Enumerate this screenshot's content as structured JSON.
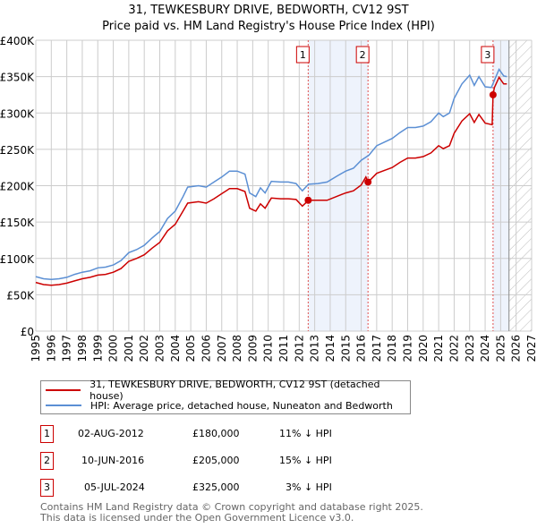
{
  "title": "31, TEWKESBURY DRIVE, BEDWORTH, CV12 9ST",
  "subtitle": "Price paid vs. HM Land Registry's House Price Index (HPI)",
  "legend": {
    "property": "31, TEWKESBURY DRIVE, BEDWORTH, CV12 9ST (detached house)",
    "hpi": "HPI: Average price, detached house, Nuneaton and Bedworth"
  },
  "sales": [
    {
      "num": "1",
      "date": "02-AUG-2012",
      "price": "£180,000",
      "delta": "11% ↓ HPI"
    },
    {
      "num": "2",
      "date": "10-JUN-2016",
      "price": "£205,000",
      "delta": "15% ↓ HPI"
    },
    {
      "num": "3",
      "date": "05-JUL-2024",
      "price": "£325,000",
      "delta": "3% ↓ HPI"
    }
  ],
  "footer": {
    "line1": "Contains HM Land Registry data © Crown copyright and database right 2025.",
    "line2": "This data is licensed under the Open Government Licence v3.0."
  },
  "colors": {
    "property": "#cc0000",
    "hpi": "#5b8fd4",
    "shade": "#eef3fc"
  },
  "chart_data": {
    "type": "line",
    "xlim": [
      1995,
      2027
    ],
    "ylim": [
      0,
      400000
    ],
    "x_ticks": [
      "1995",
      "1996",
      "1997",
      "1998",
      "1999",
      "2000",
      "2001",
      "2002",
      "2003",
      "2004",
      "2005",
      "2006",
      "2007",
      "2008",
      "2009",
      "2010",
      "2011",
      "2012",
      "2013",
      "2014",
      "2015",
      "2016",
      "2017",
      "2018",
      "2019",
      "2020",
      "2021",
      "2022",
      "2023",
      "2024",
      "2025",
      "2026",
      "2027"
    ],
    "y_ticks": [
      {
        "v": 0,
        "label": "£0"
      },
      {
        "v": 50000,
        "label": "£50K"
      },
      {
        "v": 100000,
        "label": "£100K"
      },
      {
        "v": 150000,
        "label": "£150K"
      },
      {
        "v": 200000,
        "label": "£200K"
      },
      {
        "v": 250000,
        "label": "£250K"
      },
      {
        "v": 300000,
        "label": "£300K"
      },
      {
        "v": 350000,
        "label": "£350K"
      },
      {
        "v": 400000,
        "label": "£400K"
      }
    ],
    "grid": true,
    "shaded_ranges": [
      [
        2012.58,
        2016.44
      ],
      [
        2024.51,
        2025.54
      ]
    ],
    "forecast_hatch_from": 2025.54,
    "sale_points": [
      {
        "label": "1",
        "x": 2012.58,
        "y": 180000
      },
      {
        "label": "2",
        "x": 2016.44,
        "y": 205000
      },
      {
        "label": "3",
        "x": 2024.51,
        "y": 325000
      }
    ],
    "series": [
      {
        "name": "HPI: Average price, detached house, Nuneaton and Bedworth",
        "color": "#5b8fd4",
        "x": [
          1995.0,
          1995.5,
          1996.0,
          1996.5,
          1997.0,
          1997.5,
          1998.0,
          1998.5,
          1999.0,
          1999.5,
          2000.0,
          2000.5,
          2001.0,
          2001.5,
          2002.0,
          2002.5,
          2003.0,
          2003.5,
          2004.0,
          2004.5,
          2004.8,
          2005.5,
          2006.0,
          2006.5,
          2007.0,
          2007.5,
          2008.0,
          2008.5,
          2008.8,
          2009.2,
          2009.5,
          2009.8,
          2010.2,
          2010.8,
          2011.3,
          2011.8,
          2012.2,
          2012.6,
          2013.2,
          2013.8,
          2014.5,
          2015.0,
          2015.5,
          2016.0,
          2016.5,
          2017.0,
          2017.5,
          2018.0,
          2018.5,
          2019.0,
          2019.5,
          2020.0,
          2020.5,
          2021.0,
          2021.3,
          2021.7,
          2022.0,
          2022.5,
          2023.0,
          2023.3,
          2023.6,
          2024.0,
          2024.4,
          2024.6,
          2024.9,
          2025.2,
          2025.4
        ],
        "y": [
          75000,
          72000,
          71000,
          72000,
          74000,
          78000,
          81000,
          83000,
          87000,
          88000,
          91000,
          97000,
          108000,
          112000,
          118000,
          128000,
          137000,
          155000,
          165000,
          185000,
          198000,
          200000,
          198000,
          205000,
          212000,
          220000,
          220000,
          216000,
          190000,
          185000,
          197000,
          190000,
          206000,
          205000,
          205000,
          203000,
          193000,
          202000,
          203000,
          205000,
          214000,
          220000,
          224000,
          235000,
          242000,
          255000,
          260000,
          265000,
          273000,
          280000,
          280000,
          282000,
          288000,
          300000,
          295000,
          300000,
          320000,
          340000,
          352000,
          338000,
          350000,
          336000,
          335000,
          345000,
          360000,
          351000,
          350000
        ]
      },
      {
        "name": "31, TEWKESBURY DRIVE, BEDWORTH, CV12 9ST (detached house)",
        "color": "#cc0000",
        "x": [
          1995.0,
          1995.5,
          1996.0,
          1996.5,
          1997.0,
          1997.5,
          1998.0,
          1998.5,
          1999.0,
          1999.5,
          2000.0,
          2000.5,
          2001.0,
          2001.5,
          2002.0,
          2002.5,
          2003.0,
          2003.5,
          2004.0,
          2004.5,
          2004.8,
          2005.5,
          2006.0,
          2006.5,
          2007.0,
          2007.5,
          2008.0,
          2008.5,
          2008.8,
          2009.2,
          2009.5,
          2009.8,
          2010.2,
          2010.8,
          2011.3,
          2011.8,
          2012.2,
          2012.6,
          2013.2,
          2013.8,
          2014.5,
          2015.0,
          2015.5,
          2016.0,
          2016.3,
          2016.45,
          2017.0,
          2017.5,
          2018.0,
          2018.5,
          2019.0,
          2019.5,
          2020.0,
          2020.5,
          2021.0,
          2021.3,
          2021.7,
          2022.0,
          2022.5,
          2023.0,
          2023.3,
          2023.6,
          2024.0,
          2024.45,
          2024.51,
          2024.6,
          2024.9,
          2025.2,
          2025.4
        ],
        "y": [
          67000,
          64000,
          63000,
          64000,
          66000,
          69000,
          72000,
          74000,
          77000,
          78000,
          81000,
          86000,
          96000,
          100000,
          105000,
          114000,
          122000,
          138000,
          147000,
          165000,
          176000,
          178000,
          176000,
          182000,
          189000,
          196000,
          196000,
          192000,
          169000,
          165000,
          175000,
          169000,
          183000,
          182000,
          182000,
          181000,
          172000,
          180000,
          180000,
          180000,
          186000,
          190000,
          193000,
          201000,
          212000,
          205000,
          217000,
          221000,
          225000,
          232000,
          238000,
          238000,
          240000,
          245000,
          255000,
          251000,
          255000,
          272000,
          289000,
          299000,
          287000,
          298000,
          286000,
          284000,
          325000,
          335000,
          349000,
          340000,
          340000
        ]
      }
    ]
  }
}
